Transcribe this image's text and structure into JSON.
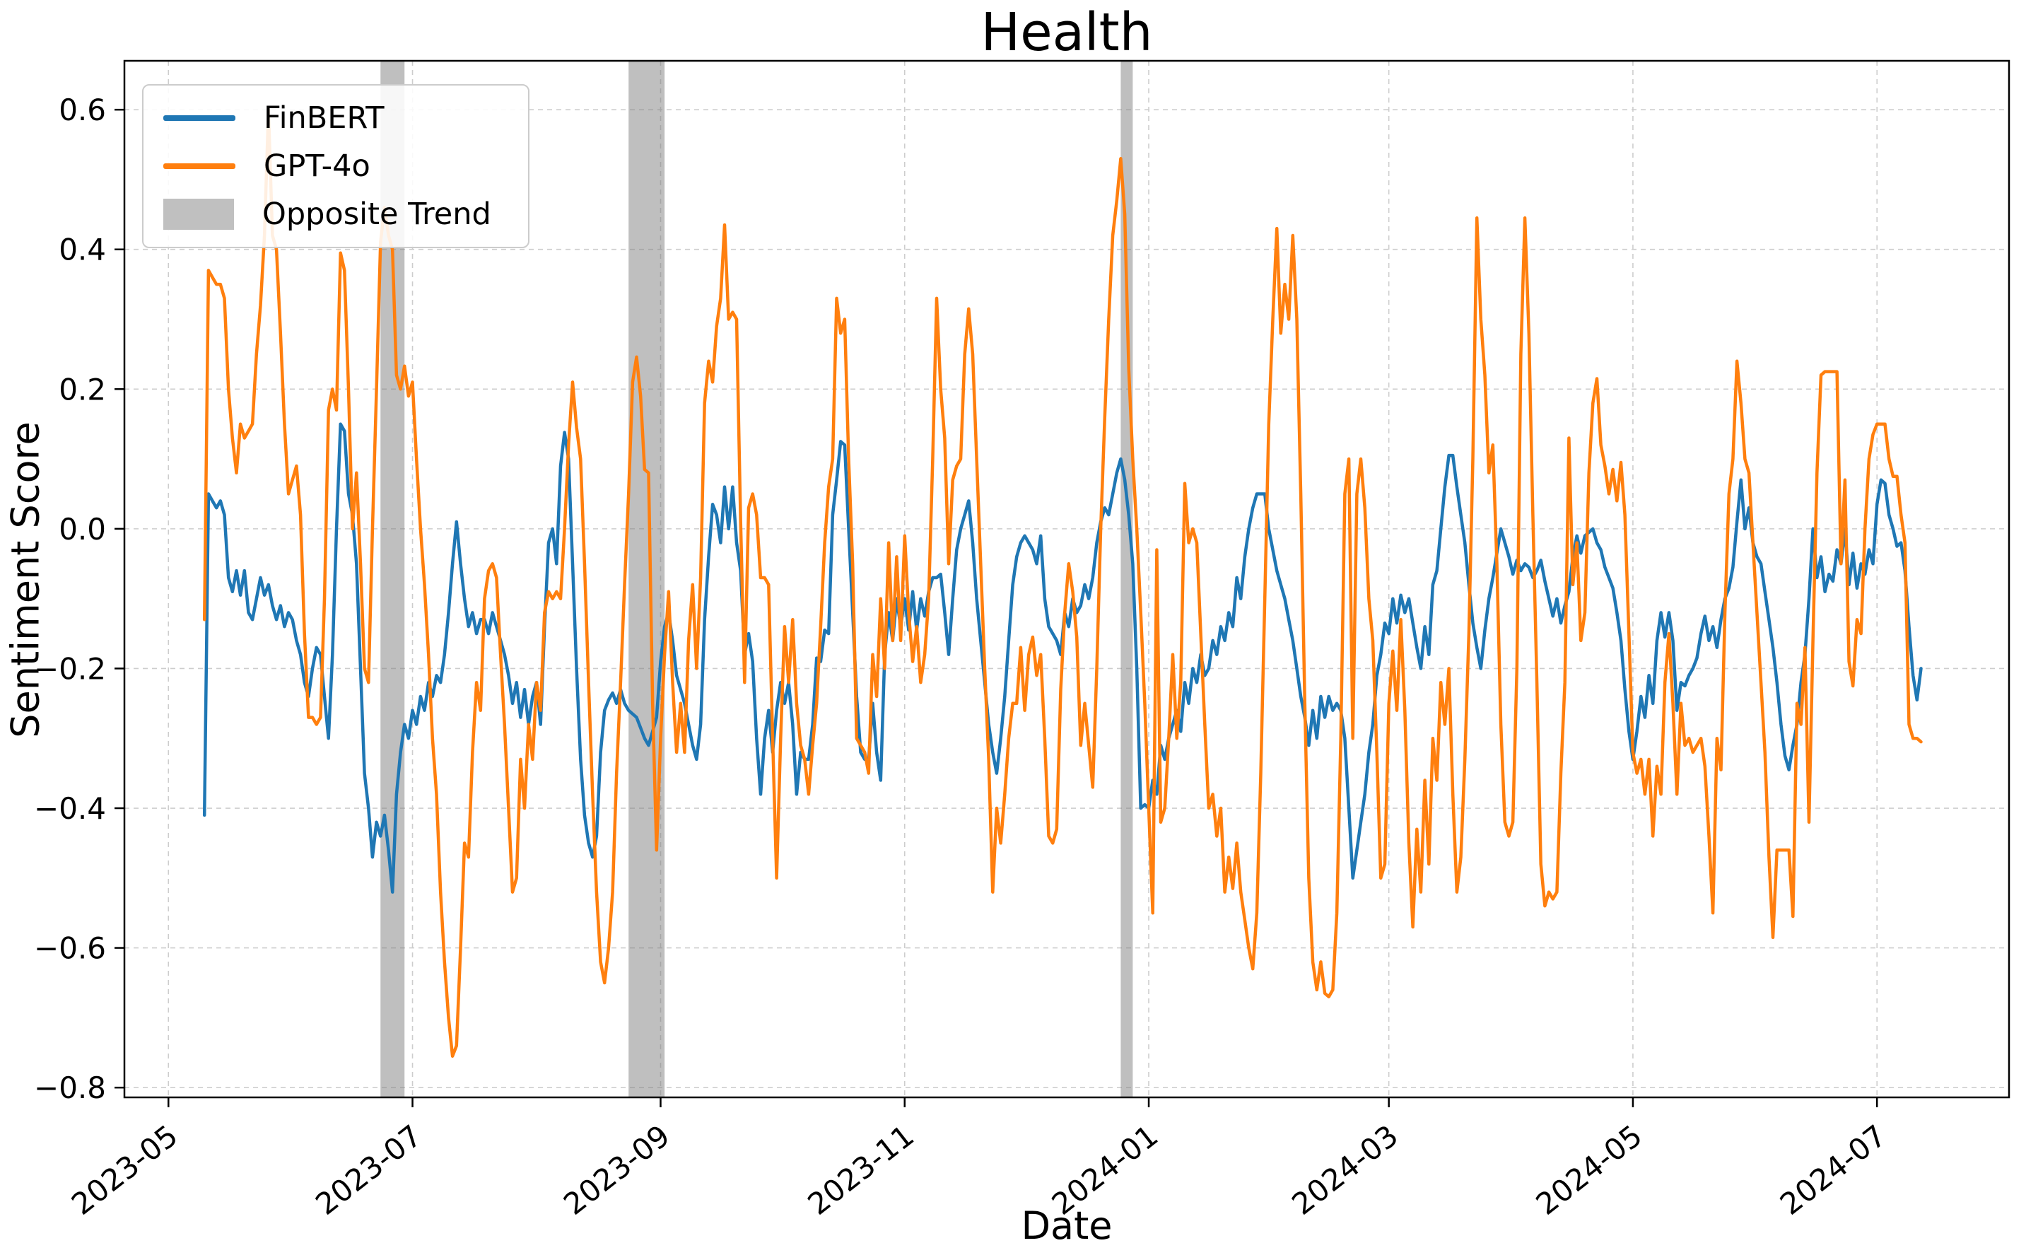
{
  "chart_data": {
    "type": "line",
    "title": "Health",
    "xlabel": "Date",
    "ylabel": "Sentiment Score",
    "ylim": [
      -0.814,
      0.67
    ],
    "xlim": [
      "2023-04-20",
      "2024-08-03"
    ],
    "grid": true,
    "legend_position": "upper left",
    "yticks": [
      0.6,
      0.4,
      0.2,
      0.0,
      -0.2,
      -0.4,
      -0.6,
      -0.8
    ],
    "xticks": [
      {
        "date": "2023-05-01",
        "label": "2023-05"
      },
      {
        "date": "2023-07-01",
        "label": "2023-07"
      },
      {
        "date": "2023-09-01",
        "label": "2023-09"
      },
      {
        "date": "2023-11-01",
        "label": "2023-11"
      },
      {
        "date": "2024-01-01",
        "label": "2024-01"
      },
      {
        "date": "2024-03-01",
        "label": "2024-03"
      },
      {
        "date": "2024-05-01",
        "label": "2024-05"
      },
      {
        "date": "2024-07-01",
        "label": "2024-07"
      }
    ],
    "legend": [
      {
        "label": "FinBERT",
        "swatch": "line",
        "color": "#1f77b4"
      },
      {
        "label": "GPT-4o",
        "swatch": "line",
        "color": "#ff7f0e"
      },
      {
        "label": "Opposite Trend",
        "swatch": "patch",
        "color": "#c0c0c0"
      }
    ],
    "bands": [
      {
        "start": "2023-06-23",
        "end": "2023-06-29"
      },
      {
        "start": "2023-08-24",
        "end": "2023-09-02"
      },
      {
        "start": "2023-12-25",
        "end": "2023-12-28"
      }
    ],
    "band_color": "#808080",
    "band_opacity": 0.5,
    "series": [
      {
        "name": "FinBERT",
        "color": "#1f77b4",
        "start_date": "2023-05-10",
        "values": [
          -0.41,
          0.05,
          0.04,
          0.03,
          0.04,
          0.02,
          -0.07,
          -0.09,
          -0.06,
          -0.095,
          -0.06,
          -0.12,
          -0.13,
          -0.1,
          -0.07,
          -0.095,
          -0.08,
          -0.11,
          -0.13,
          -0.11,
          -0.14,
          -0.12,
          -0.13,
          -0.16,
          -0.18,
          -0.22,
          -0.24,
          -0.2,
          -0.17,
          -0.18,
          -0.24,
          -0.3,
          -0.18,
          0.0,
          0.15,
          0.14,
          0.05,
          0.02,
          -0.05,
          -0.2,
          -0.35,
          -0.4,
          -0.47,
          -0.42,
          -0.44,
          -0.41,
          -0.46,
          -0.52,
          -0.38,
          -0.32,
          -0.28,
          -0.3,
          -0.26,
          -0.28,
          -0.24,
          -0.26,
          -0.22,
          -0.24,
          -0.21,
          -0.22,
          -0.18,
          -0.12,
          -0.05,
          0.01,
          -0.05,
          -0.1,
          -0.14,
          -0.12,
          -0.15,
          -0.13,
          -0.13,
          -0.15,
          -0.12,
          -0.14,
          -0.16,
          -0.18,
          -0.21,
          -0.25,
          -0.22,
          -0.27,
          -0.23,
          -0.28,
          -0.24,
          -0.22,
          -0.28,
          -0.14,
          -0.02,
          0.0,
          -0.05,
          0.09,
          0.138,
          0.1,
          -0.05,
          -0.2,
          -0.33,
          -0.41,
          -0.45,
          -0.47,
          -0.44,
          -0.32,
          -0.26,
          -0.245,
          -0.235,
          -0.25,
          -0.23,
          -0.25,
          -0.26,
          -0.265,
          -0.27,
          -0.285,
          -0.3,
          -0.31,
          -0.29,
          -0.27,
          -0.19,
          -0.14,
          -0.12,
          -0.16,
          -0.21,
          -0.23,
          -0.25,
          -0.28,
          -0.31,
          -0.33,
          -0.28,
          -0.13,
          -0.04,
          0.035,
          0.02,
          -0.02,
          0.06,
          0.0,
          0.06,
          -0.02,
          -0.06,
          -0.18,
          -0.15,
          -0.19,
          -0.3,
          -0.38,
          -0.3,
          -0.26,
          -0.32,
          -0.26,
          -0.22,
          -0.25,
          -0.22,
          -0.28,
          -0.38,
          -0.32,
          -0.33,
          -0.33,
          -0.28,
          -0.185,
          -0.19,
          -0.145,
          -0.15,
          0.02,
          0.07,
          0.125,
          0.12,
          0.0,
          -0.12,
          -0.24,
          -0.32,
          -0.33,
          -0.33,
          -0.25,
          -0.32,
          -0.36,
          -0.18,
          -0.12,
          -0.16,
          -0.1,
          -0.14,
          -0.1,
          -0.145,
          -0.09,
          -0.145,
          -0.1,
          -0.125,
          -0.09,
          -0.07,
          -0.07,
          -0.065,
          -0.12,
          -0.18,
          -0.1,
          -0.03,
          0.0,
          0.02,
          0.04,
          -0.02,
          -0.1,
          -0.16,
          -0.22,
          -0.28,
          -0.32,
          -0.35,
          -0.3,
          -0.24,
          -0.16,
          -0.08,
          -0.04,
          -0.02,
          -0.01,
          -0.02,
          -0.03,
          -0.05,
          -0.01,
          -0.1,
          -0.14,
          -0.15,
          -0.16,
          -0.18,
          -0.12,
          -0.14,
          -0.1,
          -0.12,
          -0.11,
          -0.08,
          -0.1,
          -0.07,
          -0.02,
          0.01,
          0.03,
          0.02,
          0.05,
          0.08,
          0.1,
          0.07,
          0.02,
          -0.05,
          -0.2,
          -0.4,
          -0.395,
          -0.4,
          -0.36,
          -0.38,
          -0.31,
          -0.33,
          -0.3,
          -0.28,
          -0.26,
          -0.29,
          -0.22,
          -0.25,
          -0.2,
          -0.22,
          -0.18,
          -0.21,
          -0.2,
          -0.16,
          -0.18,
          -0.14,
          -0.16,
          -0.12,
          -0.14,
          -0.07,
          -0.1,
          -0.04,
          0.0,
          0.03,
          0.05,
          0.05,
          0.05,
          0.0,
          -0.03,
          -0.06,
          -0.08,
          -0.1,
          -0.13,
          -0.16,
          -0.2,
          -0.24,
          -0.27,
          -0.31,
          -0.26,
          -0.3,
          -0.24,
          -0.27,
          -0.24,
          -0.26,
          -0.25,
          -0.26,
          -0.3,
          -0.4,
          -0.5,
          -0.46,
          -0.42,
          -0.38,
          -0.32,
          -0.28,
          -0.21,
          -0.18,
          -0.135,
          -0.15,
          -0.1,
          -0.135,
          -0.095,
          -0.12,
          -0.1,
          -0.135,
          -0.17,
          -0.2,
          -0.14,
          -0.18,
          -0.08,
          -0.06,
          0.0,
          0.06,
          0.105,
          0.105,
          0.06,
          0.02,
          -0.02,
          -0.08,
          -0.135,
          -0.17,
          -0.2,
          -0.145,
          -0.1,
          -0.07,
          -0.035,
          0.0,
          -0.02,
          -0.04,
          -0.065,
          -0.045,
          -0.06,
          -0.05,
          -0.055,
          -0.07,
          -0.06,
          -0.045,
          -0.075,
          -0.1,
          -0.125,
          -0.1,
          -0.135,
          -0.11,
          -0.09,
          -0.04,
          -0.01,
          -0.035,
          -0.01,
          -0.005,
          0.0,
          -0.02,
          -0.03,
          -0.055,
          -0.07,
          -0.085,
          -0.12,
          -0.16,
          -0.23,
          -0.29,
          -0.33,
          -0.29,
          -0.24,
          -0.27,
          -0.21,
          -0.25,
          -0.16,
          -0.12,
          -0.155,
          -0.12,
          -0.16,
          -0.26,
          -0.22,
          -0.225,
          -0.21,
          -0.2,
          -0.185,
          -0.15,
          -0.125,
          -0.16,
          -0.14,
          -0.17,
          -0.13,
          -0.1,
          -0.085,
          -0.055,
          0.01,
          0.07,
          0.0,
          0.03,
          -0.02,
          -0.04,
          -0.05,
          -0.09,
          -0.13,
          -0.17,
          -0.22,
          -0.28,
          -0.325,
          -0.345,
          -0.31,
          -0.28,
          -0.22,
          -0.18,
          -0.1,
          0.0,
          -0.07,
          -0.04,
          -0.09,
          -0.065,
          -0.075,
          -0.03,
          -0.05,
          0.0,
          -0.08,
          -0.035,
          -0.085,
          -0.05,
          -0.065,
          -0.03,
          -0.05,
          0.035,
          0.07,
          0.065,
          0.02,
          0.0,
          -0.025,
          -0.02,
          -0.06,
          -0.14,
          -0.21,
          -0.245,
          -0.2
        ]
      },
      {
        "name": "GPT-4o",
        "color": "#ff7f0e",
        "start_date": "2023-05-10",
        "values": [
          -0.13,
          0.37,
          0.36,
          0.35,
          0.35,
          0.33,
          0.2,
          0.13,
          0.08,
          0.15,
          0.13,
          0.14,
          0.15,
          0.25,
          0.32,
          0.42,
          0.6,
          0.42,
          0.4,
          0.28,
          0.15,
          0.05,
          0.07,
          0.09,
          0.02,
          -0.15,
          -0.27,
          -0.27,
          -0.28,
          -0.27,
          -0.1,
          0.17,
          0.2,
          0.17,
          0.395,
          0.37,
          0.2,
          0.0,
          0.08,
          -0.05,
          -0.2,
          -0.22,
          0.0,
          0.2,
          0.41,
          0.46,
          0.42,
          0.4,
          0.22,
          0.2,
          0.233,
          0.19,
          0.21,
          0.1,
          0.0,
          -0.08,
          -0.18,
          -0.3,
          -0.38,
          -0.52,
          -0.62,
          -0.7,
          -0.755,
          -0.74,
          -0.6,
          -0.45,
          -0.47,
          -0.32,
          -0.22,
          -0.26,
          -0.1,
          -0.06,
          -0.05,
          -0.07,
          -0.18,
          -0.28,
          -0.4,
          -0.52,
          -0.5,
          -0.33,
          -0.4,
          -0.28,
          -0.33,
          -0.22,
          -0.26,
          -0.12,
          -0.09,
          -0.1,
          -0.09,
          -0.1,
          0.0,
          0.12,
          0.21,
          0.145,
          0.1,
          -0.05,
          -0.22,
          -0.38,
          -0.52,
          -0.62,
          -0.65,
          -0.6,
          -0.52,
          -0.35,
          -0.22,
          -0.08,
          0.05,
          0.21,
          0.246,
          0.19,
          0.085,
          0.08,
          -0.25,
          -0.46,
          -0.3,
          -0.18,
          -0.09,
          -0.22,
          -0.32,
          -0.25,
          -0.32,
          -0.16,
          -0.08,
          -0.2,
          -0.07,
          0.18,
          0.24,
          0.21,
          0.29,
          0.33,
          0.435,
          0.3,
          0.31,
          0.3,
          0.01,
          -0.22,
          0.03,
          0.05,
          0.02,
          -0.07,
          -0.07,
          -0.08,
          -0.3,
          -0.5,
          -0.3,
          -0.14,
          -0.22,
          -0.13,
          -0.25,
          -0.31,
          -0.33,
          -0.38,
          -0.31,
          -0.25,
          -0.14,
          -0.02,
          0.06,
          0.1,
          0.33,
          0.28,
          0.3,
          0.1,
          -0.05,
          -0.3,
          -0.31,
          -0.32,
          -0.35,
          -0.18,
          -0.24,
          -0.1,
          -0.2,
          -0.02,
          -0.16,
          -0.04,
          -0.16,
          -0.01,
          -0.12,
          -0.19,
          -0.14,
          -0.22,
          -0.18,
          -0.1,
          0.1,
          0.33,
          0.2,
          0.13,
          -0.05,
          0.07,
          0.09,
          0.1,
          0.25,
          0.315,
          0.25,
          0.1,
          -0.05,
          -0.2,
          -0.33,
          -0.52,
          -0.4,
          -0.45,
          -0.38,
          -0.3,
          -0.25,
          -0.25,
          -0.17,
          -0.26,
          -0.18,
          -0.155,
          -0.21,
          -0.18,
          -0.3,
          -0.44,
          -0.45,
          -0.43,
          -0.23,
          -0.12,
          -0.05,
          -0.09,
          -0.155,
          -0.31,
          -0.25,
          -0.31,
          -0.37,
          -0.2,
          0.0,
          0.16,
          0.3,
          0.42,
          0.47,
          0.53,
          0.45,
          0.23,
          0.1,
          0.0,
          -0.12,
          -0.25,
          -0.4,
          -0.55,
          -0.03,
          -0.42,
          -0.4,
          -0.3,
          -0.18,
          -0.3,
          -0.22,
          0.065,
          -0.02,
          0.0,
          -0.02,
          -0.15,
          -0.28,
          -0.4,
          -0.38,
          -0.44,
          -0.4,
          -0.52,
          -0.47,
          -0.515,
          -0.45,
          -0.52,
          -0.56,
          -0.6,
          -0.63,
          -0.55,
          -0.35,
          -0.1,
          0.15,
          0.3,
          0.43,
          0.28,
          0.35,
          0.3,
          0.42,
          0.3,
          0.05,
          -0.25,
          -0.5,
          -0.62,
          -0.66,
          -0.62,
          -0.665,
          -0.67,
          -0.66,
          -0.55,
          -0.3,
          0.05,
          0.1,
          -0.3,
          0.05,
          0.1,
          0.03,
          -0.1,
          -0.16,
          -0.32,
          -0.5,
          -0.48,
          -0.25,
          -0.175,
          -0.26,
          -0.13,
          -0.26,
          -0.45,
          -0.57,
          -0.43,
          -0.52,
          -0.36,
          -0.48,
          -0.3,
          -0.36,
          -0.22,
          -0.28,
          -0.2,
          -0.38,
          -0.52,
          -0.47,
          -0.33,
          -0.15,
          0.1,
          0.445,
          0.3,
          0.22,
          0.08,
          0.12,
          -0.05,
          -0.28,
          -0.42,
          -0.44,
          -0.42,
          -0.2,
          0.25,
          0.445,
          0.28,
          0.02,
          -0.22,
          -0.48,
          -0.54,
          -0.52,
          -0.53,
          -0.52,
          -0.35,
          -0.22,
          0.13,
          -0.08,
          -0.02,
          -0.16,
          -0.12,
          0.08,
          0.18,
          0.215,
          0.12,
          0.09,
          0.05,
          0.085,
          0.04,
          0.095,
          0.02,
          -0.15,
          -0.32,
          -0.35,
          -0.33,
          -0.38,
          -0.33,
          -0.44,
          -0.34,
          -0.38,
          -0.22,
          -0.15,
          -0.25,
          -0.38,
          -0.25,
          -0.31,
          -0.3,
          -0.32,
          -0.31,
          -0.3,
          -0.34,
          -0.44,
          -0.55,
          -0.3,
          -0.345,
          -0.12,
          0.05,
          0.1,
          0.24,
          0.18,
          0.1,
          0.08,
          -0.02,
          -0.12,
          -0.22,
          -0.32,
          -0.47,
          -0.585,
          -0.46,
          -0.46,
          -0.46,
          -0.46,
          -0.555,
          -0.25,
          -0.28,
          -0.17,
          -0.42,
          -0.16,
          0.08,
          0.22,
          0.225,
          0.225,
          0.225,
          0.225,
          -0.05,
          0.07,
          -0.19,
          -0.225,
          -0.13,
          -0.15,
          0.0,
          0.1,
          0.135,
          0.15,
          0.15,
          0.15,
          0.1,
          0.075,
          0.075,
          0.02,
          -0.02,
          -0.28,
          -0.3,
          -0.3,
          -0.305
        ]
      }
    ]
  }
}
